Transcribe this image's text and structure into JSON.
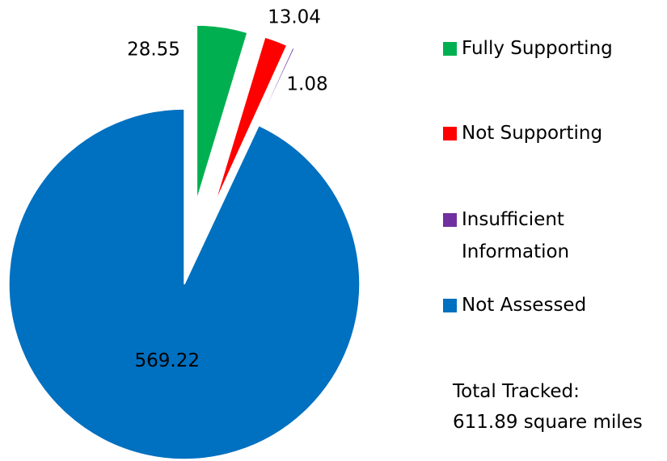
{
  "chart_data": {
    "type": "pie",
    "categories": [
      "Fully Supporting",
      "Not Supporting",
      "Insufficient Information",
      "Not Assessed"
    ],
    "values": [
      28.55,
      13.04,
      1.08,
      569.22
    ],
    "colors": [
      "#00b050",
      "#ff0000",
      "#7030a0",
      "#0070c0"
    ],
    "legend": "right",
    "annotations": [
      "Total Tracked:",
      "611.89 square miles"
    ]
  }
}
